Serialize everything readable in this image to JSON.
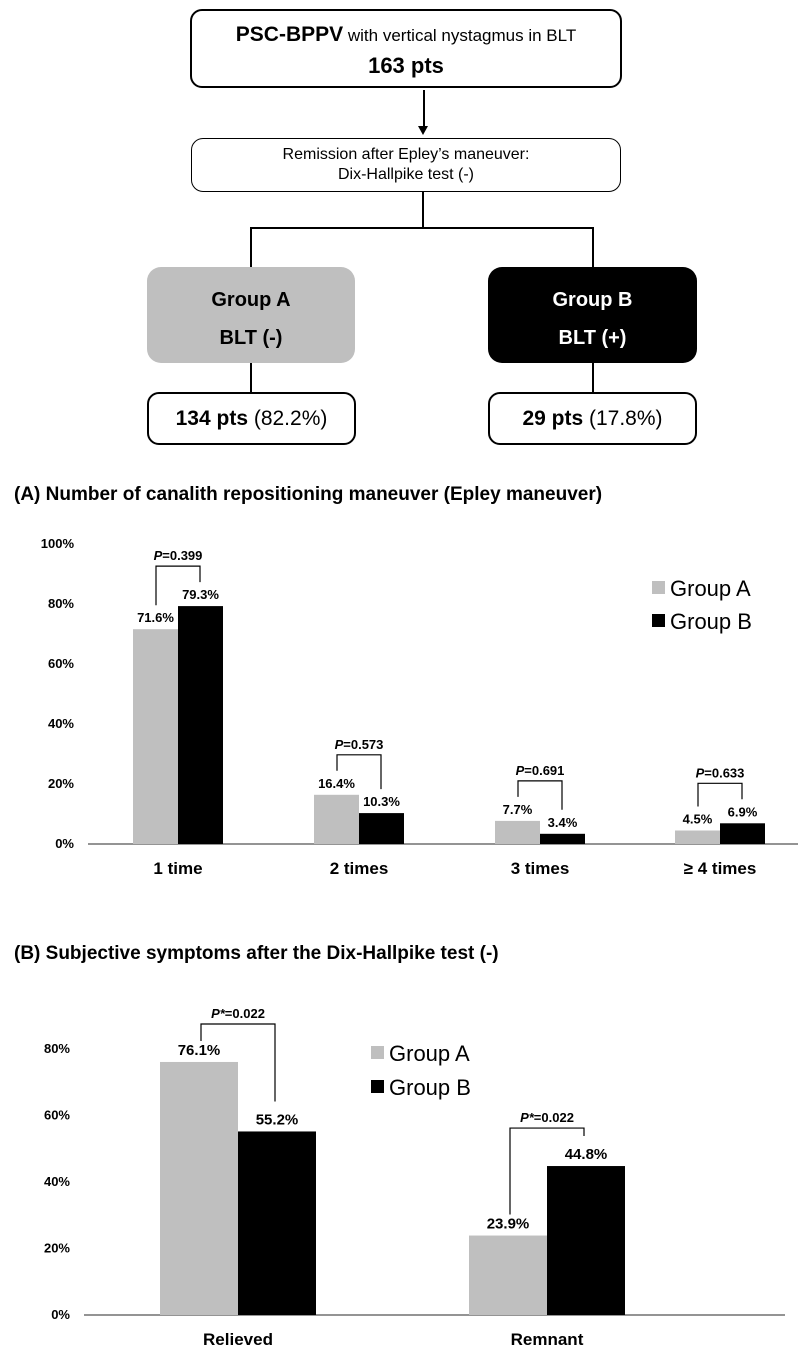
{
  "flow": {
    "top_bold": "PSC-BPPV",
    "top_rest": " with vertical nystagmus in BLT",
    "top_count": "163 pts",
    "remission_l1": "Remission after Epley’s maneuver:",
    "remission_l2": "Dix-Hallpike test (-)",
    "group_a_name": "Group A",
    "group_a_sub_pre": "BLT ",
    "group_a_sub_sign": "(-)",
    "group_b_name": "Group B",
    "group_b_sub": "BLT (+)",
    "group_a_count": "134 pts",
    "group_a_pct": " (82.2%)",
    "group_b_count": "29 pts",
    "group_b_pct": " (17.8%)"
  },
  "chart_data": [
    {
      "type": "bar",
      "title": "(A) Number of canalith repositioning maneuver  (Epley maneuver)",
      "categories": [
        "1 time",
        "2 times",
        "3 times",
        "≥ 4 times"
      ],
      "series": [
        {
          "name": "Group A",
          "values": [
            71.6,
            16.4,
            7.7,
            4.5
          ],
          "labels": [
            "71.6%",
            "16.4%",
            "7.7%",
            "4.5%"
          ],
          "color": "#bfbfbf"
        },
        {
          "name": "Group B",
          "values": [
            79.3,
            10.3,
            3.4,
            6.9
          ],
          "labels": [
            "79.3%",
            "10.3%",
            "3.4%",
            "6.9%"
          ],
          "color": "#000000"
        }
      ],
      "pvalues": [
        {
          "p": "P",
          "rest": "=0.399"
        },
        {
          "p": "P",
          "rest": "=0.573"
        },
        {
          "p": "P",
          "rest": "=0.691"
        },
        {
          "p": "P",
          "rest": "=0.633"
        }
      ],
      "yticks": [
        "0%",
        "20%",
        "40%",
        "60%",
        "80%",
        "100%"
      ],
      "ylim": [
        0,
        100
      ],
      "grid": false,
      "legend": "top-right"
    },
    {
      "type": "bar",
      "title": "(B) Subjective symptoms after the Dix-Hallpike test (-)",
      "categories": [
        "Relieved",
        "Remnant"
      ],
      "series": [
        {
          "name": "Group A",
          "values": [
            76.1,
            23.9
          ],
          "labels": [
            "76.1%",
            "23.9%"
          ],
          "color": "#bfbfbf"
        },
        {
          "name": "Group B",
          "values": [
            55.2,
            44.8
          ],
          "labels": [
            "55.2%",
            "44.8%"
          ],
          "color": "#000000"
        }
      ],
      "pvalues": [
        {
          "p": "P*",
          "rest": "=0.022"
        },
        {
          "p": "P*",
          "rest": "=0.022"
        }
      ],
      "yticks": [
        "0%",
        "20%",
        "40%",
        "60%",
        "80%"
      ],
      "ylim": [
        0,
        80
      ],
      "grid": false,
      "legend": "top-center"
    }
  ]
}
